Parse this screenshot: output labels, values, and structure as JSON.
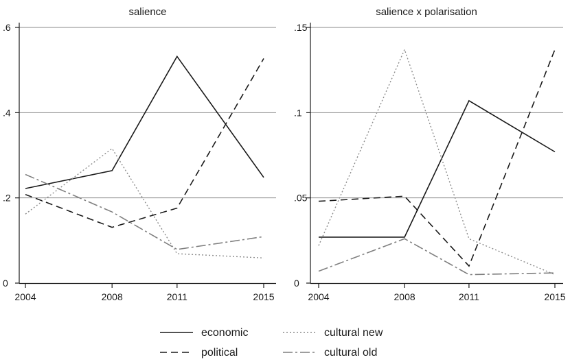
{
  "chart_data": [
    {
      "type": "line",
      "title": "salience",
      "x": [
        2004,
        2008,
        2011,
        2015
      ],
      "x_ticks": [
        "2004",
        "2008",
        "2011",
        "2015"
      ],
      "ylim": [
        0,
        0.6
      ],
      "y_ticks": [
        0,
        0.2,
        0.4,
        0.6
      ],
      "y_tick_labels": [
        "0",
        ".2",
        ".4",
        ".6"
      ],
      "grid": true,
      "series": [
        {
          "name": "economic",
          "values": [
            0.222,
            0.264,
            0.532,
            0.248
          ],
          "style": "solid",
          "color": "#1a1a1a"
        },
        {
          "name": "political",
          "values": [
            0.208,
            0.131,
            0.176,
            0.527
          ],
          "style": "dashed",
          "color": "#1a1a1a"
        },
        {
          "name": "cultural new",
          "values": [
            0.162,
            0.316,
            0.069,
            0.059
          ],
          "style": "dotted",
          "color": "#8c8c8c"
        },
        {
          "name": "cultural old",
          "values": [
            0.255,
            0.167,
            0.079,
            0.109
          ],
          "style": "dashdot",
          "color": "#7f7f7f"
        }
      ]
    },
    {
      "type": "line",
      "title": "salience x polarisation",
      "x": [
        2004,
        2008,
        2011,
        2015
      ],
      "x_ticks": [
        "2004",
        "2008",
        "2011",
        "2015"
      ],
      "ylim": [
        0,
        0.15
      ],
      "y_ticks": [
        0,
        0.05,
        0.1,
        0.15
      ],
      "y_tick_labels": [
        "0",
        ".05",
        ".1",
        ".15"
      ],
      "grid": true,
      "series": [
        {
          "name": "economic",
          "values": [
            0.027,
            0.027,
            0.107,
            0.077
          ],
          "style": "solid",
          "color": "#1a1a1a"
        },
        {
          "name": "political",
          "values": [
            0.048,
            0.051,
            0.01,
            0.137
          ],
          "style": "dashed",
          "color": "#1a1a1a"
        },
        {
          "name": "cultural new",
          "values": [
            0.022,
            0.137,
            0.026,
            0.005
          ],
          "style": "dotted",
          "color": "#8c8c8c"
        },
        {
          "name": "cultural old",
          "values": [
            0.007,
            0.026,
            0.005,
            0.006
          ],
          "style": "dashdot",
          "color": "#7f7f7f"
        }
      ]
    }
  ],
  "legend": {
    "placement": "bottom",
    "items": [
      {
        "label": "economic",
        "style": "solid"
      },
      {
        "label": "political",
        "style": "dashed"
      },
      {
        "label": "cultural new",
        "style": "dotted"
      },
      {
        "label": "cultural old",
        "style": "dashdot"
      }
    ]
  },
  "colors": {
    "axis": "#1a1a1a",
    "grid": "#8a8a8a"
  }
}
